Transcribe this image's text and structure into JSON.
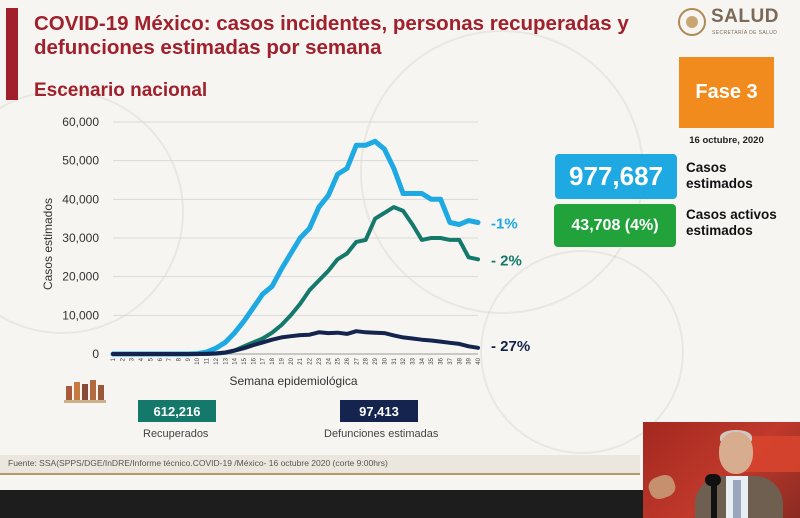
{
  "header": {
    "title": "COVID-19 México: casos incidentes, personas recuperadas y defunciones estimadas por semana",
    "subtitle": "Escenario nacional",
    "logo_text": "SALUD",
    "logo_subtext": "SECRETARÍA DE SALUD"
  },
  "phase": {
    "label": "Fase 3",
    "date": "16 octubre, 2020"
  },
  "stats": {
    "casos_value": "977,687",
    "casos_label_1": "Casos",
    "casos_label_2": "estimados",
    "activos_value": "43,708 (4%)",
    "activos_label_1": "Casos activos",
    "activos_label_2": "estimados"
  },
  "totals": {
    "recuperados_value": "612,216",
    "recuperados_label": "Recuperados",
    "defunciones_value": "97,413",
    "defunciones_label": "Defunciones estimadas"
  },
  "source": "Fuente: SSA(SPPS/DGE/InDRE/Informe técnico.COVID-19 /México- 16 octubre 2020 (corte 9:00hrs)",
  "colors": {
    "accent": "#a0202b",
    "casos": "#1ea9e3",
    "recuperados": "#14786a",
    "defunciones": "#15244e",
    "fase": "#f28b1e",
    "activos": "#22a23b"
  },
  "chart_data": {
    "type": "line",
    "xlabel": "Semana epidemiológica",
    "ylabel": "Casos estimados",
    "ylim": [
      0,
      60000
    ],
    "yticks": [
      "0",
      "10,000",
      "20,000",
      "30,000",
      "40,000",
      "50,000",
      "60,000"
    ],
    "grid": "horizontal",
    "x": [
      1,
      2,
      3,
      4,
      5,
      6,
      7,
      8,
      9,
      10,
      11,
      12,
      13,
      14,
      15,
      16,
      17,
      18,
      19,
      20,
      21,
      22,
      23,
      24,
      25,
      26,
      27,
      28,
      29,
      30,
      31,
      32,
      33,
      34,
      35,
      36,
      37,
      38,
      39,
      40
    ],
    "series": [
      {
        "key": "casos",
        "change_label": "-1%",
        "values": [
          0,
          0,
          0,
          0,
          0,
          0,
          0,
          0,
          0,
          100,
          500,
          1500,
          3000,
          5500,
          8500,
          12000,
          15500,
          17500,
          22000,
          26000,
          30000,
          32500,
          38000,
          41000,
          46500,
          48000,
          54000,
          54000,
          55000,
          53000,
          48000,
          41500,
          41500,
          41500,
          40000,
          40000,
          34000,
          33500,
          34500,
          34000
        ]
      },
      {
        "key": "recuperados",
        "change_label": "- 2%",
        "values": [
          0,
          0,
          0,
          0,
          0,
          0,
          0,
          0,
          0,
          0,
          0,
          100,
          300,
          900,
          2000,
          3000,
          4000,
          5500,
          7500,
          10000,
          13000,
          16500,
          19000,
          21500,
          24500,
          26000,
          29000,
          29500,
          35000,
          36500,
          38000,
          37000,
          33500,
          29500,
          30000,
          30000,
          29500,
          29500,
          25000,
          24500
        ]
      },
      {
        "key": "defunciones",
        "change_label": "- 27%",
        "values": [
          0,
          0,
          0,
          0,
          0,
          0,
          0,
          0,
          0,
          0,
          50,
          150,
          400,
          900,
          1500,
          2300,
          3000,
          3700,
          4300,
          4600,
          4900,
          5000,
          5600,
          5400,
          5500,
          5200,
          5900,
          5600,
          5500,
          5400,
          4800,
          4300,
          4000,
          3700,
          3500,
          3200,
          2900,
          2600,
          2000,
          1600
        ]
      }
    ]
  }
}
